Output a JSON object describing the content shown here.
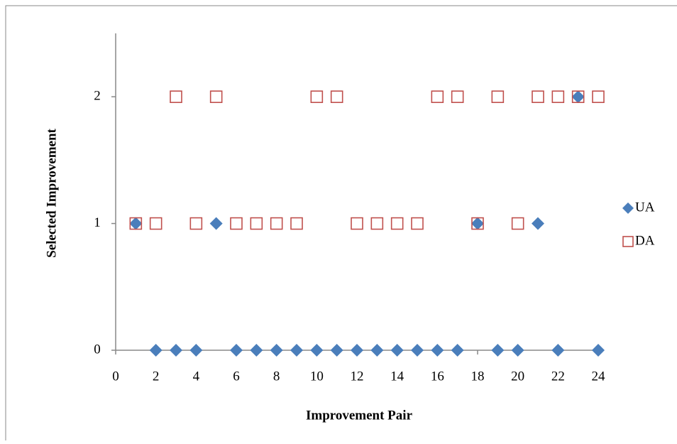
{
  "chart_data": {
    "type": "scatter",
    "xlabel": "Improvement Pair",
    "ylabel": "Selected Improvement",
    "x": [
      1,
      2,
      3,
      4,
      5,
      6,
      7,
      8,
      9,
      10,
      11,
      12,
      13,
      14,
      15,
      16,
      17,
      18,
      19,
      20,
      21,
      22,
      23,
      24
    ],
    "series": [
      {
        "name": "UA",
        "color": "#4a7ebb",
        "marker": "diamond",
        "values": [
          1,
          0,
          0,
          0,
          1,
          0,
          0,
          0,
          0,
          0,
          0,
          0,
          0,
          0,
          0,
          0,
          0,
          1,
          0,
          0,
          1,
          0,
          2,
          0
        ]
      },
      {
        "name": "DA",
        "color": "#c0504d",
        "marker": "square-open",
        "values": [
          1,
          1,
          2,
          1,
          2,
          1,
          1,
          1,
          1,
          2,
          2,
          1,
          1,
          1,
          1,
          2,
          2,
          1,
          2,
          1,
          2,
          2,
          2,
          2
        ]
      }
    ],
    "xlim": [
      0,
      24
    ],
    "xticks": [
      0,
      2,
      4,
      6,
      8,
      10,
      12,
      14,
      16,
      18,
      20,
      22,
      24
    ],
    "ylim": [
      0,
      2.5
    ],
    "yticks": [
      0,
      1,
      2
    ],
    "legend": "right"
  }
}
